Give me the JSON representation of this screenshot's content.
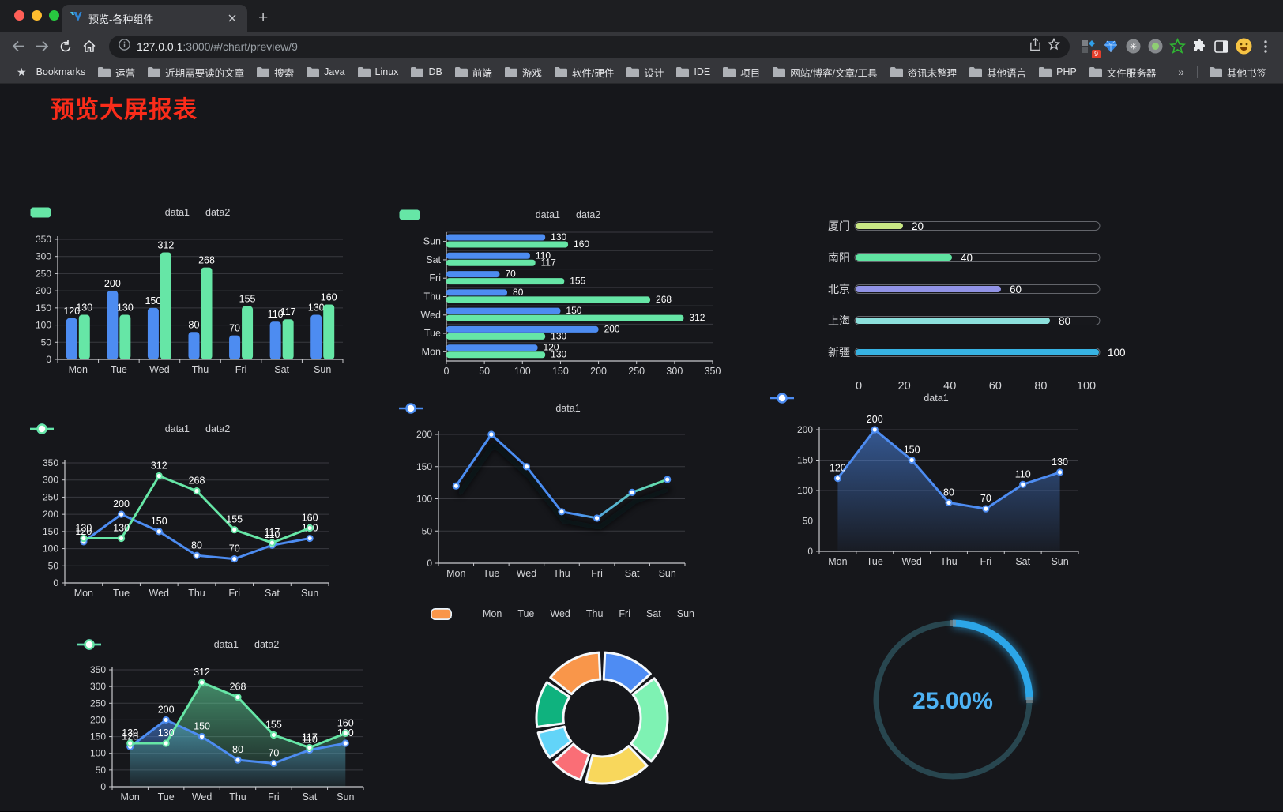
{
  "browser": {
    "tab": {
      "title": "预览-各种组件"
    },
    "new_tab": "+",
    "url": {
      "host": "127.0.0.1",
      "rest": ":3000/#/chart/preview/9"
    },
    "bookmarks_label": "Bookmarks",
    "bookmarks": [
      "运营",
      "近期需要读的文章",
      "搜索",
      "Java",
      "Linux",
      "DB",
      "前端",
      "游戏",
      "软件/硬件",
      "设计",
      "IDE",
      "项目",
      "网站/博客/文章/工具",
      "资讯未整理",
      "其他语言",
      "PHP",
      "文件服务器"
    ],
    "bookmarks_overflow": "»",
    "other_bookmarks": "其他书签",
    "extension_badge": "9"
  },
  "page": {
    "title": "预览大屏报表",
    "title_color": "#fa2c1a",
    "background": "#16171b"
  },
  "chart_data": [
    {
      "id": "grouped-bar",
      "type": "bar",
      "categories": [
        "Mon",
        "Tue",
        "Wed",
        "Thu",
        "Fri",
        "Sat",
        "Sun"
      ],
      "series": [
        {
          "name": "data1",
          "color": "#4d8cf1",
          "values": [
            120,
            200,
            150,
            80,
            70,
            110,
            130
          ]
        },
        {
          "name": "data2",
          "color": "#66e6a6",
          "values": [
            130,
            130,
            312,
            268,
            155,
            117,
            160
          ]
        }
      ],
      "ylim": [
        0,
        350
      ],
      "ytick": 50,
      "grid": true,
      "value_labels": true,
      "legend_position": "top"
    },
    {
      "id": "grouped-bar-horizontal",
      "type": "bar-horizontal",
      "categories": [
        "Mon",
        "Tue",
        "Wed",
        "Thu",
        "Fri",
        "Sat",
        "Sun"
      ],
      "display_order_top_to_bottom": [
        "Sun",
        "Sat",
        "Fri",
        "Thu",
        "Wed",
        "Tue",
        "Mon"
      ],
      "series": [
        {
          "name": "data1",
          "color": "#4d8cf1",
          "values": [
            120,
            200,
            150,
            80,
            70,
            110,
            130
          ]
        },
        {
          "name": "data2",
          "color": "#66e6a6",
          "values": [
            130,
            130,
            312,
            268,
            155,
            117,
            160
          ]
        }
      ],
      "xlim": [
        0,
        350
      ],
      "xtick": 50,
      "value_labels": true,
      "legend_position": "top"
    },
    {
      "id": "progress-bars",
      "type": "progress",
      "items": [
        {
          "label": "厦门",
          "value": 20,
          "color": "#c9e784"
        },
        {
          "label": "南阳",
          "value": 40,
          "color": "#5fe3a1"
        },
        {
          "label": "北京",
          "value": 60,
          "color": "#9193e6"
        },
        {
          "label": "上海",
          "value": 80,
          "color": "#8ce0dc"
        },
        {
          "label": "新疆",
          "value": 100,
          "color": "#37b3e3"
        }
      ],
      "xlim": [
        0,
        100
      ],
      "xticks": [
        0,
        20,
        40,
        60,
        80,
        100
      ]
    },
    {
      "id": "line-two-series",
      "type": "line",
      "categories": [
        "Mon",
        "Tue",
        "Wed",
        "Thu",
        "Fri",
        "Sat",
        "Sun"
      ],
      "series": [
        {
          "name": "data1",
          "color": "#4d8cf1",
          "values": [
            120,
            200,
            150,
            80,
            70,
            110,
            130
          ]
        },
        {
          "name": "data2",
          "color": "#66e6a6",
          "values": [
            130,
            130,
            312,
            268,
            155,
            117,
            160
          ]
        }
      ],
      "ylim": [
        0,
        350
      ],
      "ytick": 50,
      "value_labels": true,
      "markers": true,
      "legend_position": "top"
    },
    {
      "id": "gradient-line",
      "type": "line",
      "categories": [
        "Mon",
        "Tue",
        "Wed",
        "Thu",
        "Fri",
        "Sat",
        "Sun"
      ],
      "series": [
        {
          "name": "data1",
          "color": "#4a8df2",
          "gradient": [
            "#4a8df2",
            "#66e6a6"
          ],
          "values": [
            120,
            200,
            150,
            80,
            70,
            110,
            130
          ]
        }
      ],
      "ylim": [
        0,
        200
      ],
      "ytick": 50,
      "value_labels": false,
      "markers": true,
      "shadow": true,
      "legend_position": "top"
    },
    {
      "id": "area-single",
      "type": "area",
      "categories": [
        "Mon",
        "Tue",
        "Wed",
        "Thu",
        "Fri",
        "Sat",
        "Sun"
      ],
      "series": [
        {
          "name": "data1",
          "color": "#4d8cf1",
          "values": [
            120,
            200,
            150,
            80,
            70,
            110,
            130
          ]
        }
      ],
      "ylim": [
        0,
        200
      ],
      "ytick": 50,
      "value_labels": true,
      "markers": true,
      "legend_position": "top"
    },
    {
      "id": "area-two-series",
      "type": "area",
      "categories": [
        "Mon",
        "Tue",
        "Wed",
        "Thu",
        "Fri",
        "Sat",
        "Sun"
      ],
      "series": [
        {
          "name": "data1",
          "color": "#4d8cf1",
          "values": [
            120,
            200,
            150,
            80,
            70,
            110,
            130
          ]
        },
        {
          "name": "data2",
          "color": "#66e6a6",
          "values": [
            130,
            130,
            312,
            268,
            155,
            117,
            160
          ]
        }
      ],
      "ylim": [
        0,
        350
      ],
      "ytick": 50,
      "value_labels": true,
      "markers": true,
      "legend_position": "top"
    },
    {
      "id": "donut",
      "type": "pie",
      "slices": [
        {
          "label": "Mon",
          "value": 120,
          "color": "#4e8cf3"
        },
        {
          "label": "Tue",
          "value": 200,
          "color": "#7ef2b3"
        },
        {
          "label": "Wed",
          "value": 150,
          "color": "#f8d75c"
        },
        {
          "label": "Thu",
          "value": 80,
          "color": "#fa6e76"
        },
        {
          "label": "Fri",
          "value": 70,
          "color": "#62d4f8"
        },
        {
          "label": "Sat",
          "value": 110,
          "color": "#0fb27e"
        },
        {
          "label": "Sun",
          "value": 130,
          "color": "#f9964a"
        }
      ],
      "inner_radius_ratio": 0.59,
      "legend_position": "top"
    },
    {
      "id": "gauge",
      "type": "gauge",
      "value_percent": 25,
      "label": "25.00%",
      "ring_color": "#28464f",
      "progress_color": "#2ca6e8",
      "text_color": "#4db2f4"
    }
  ]
}
